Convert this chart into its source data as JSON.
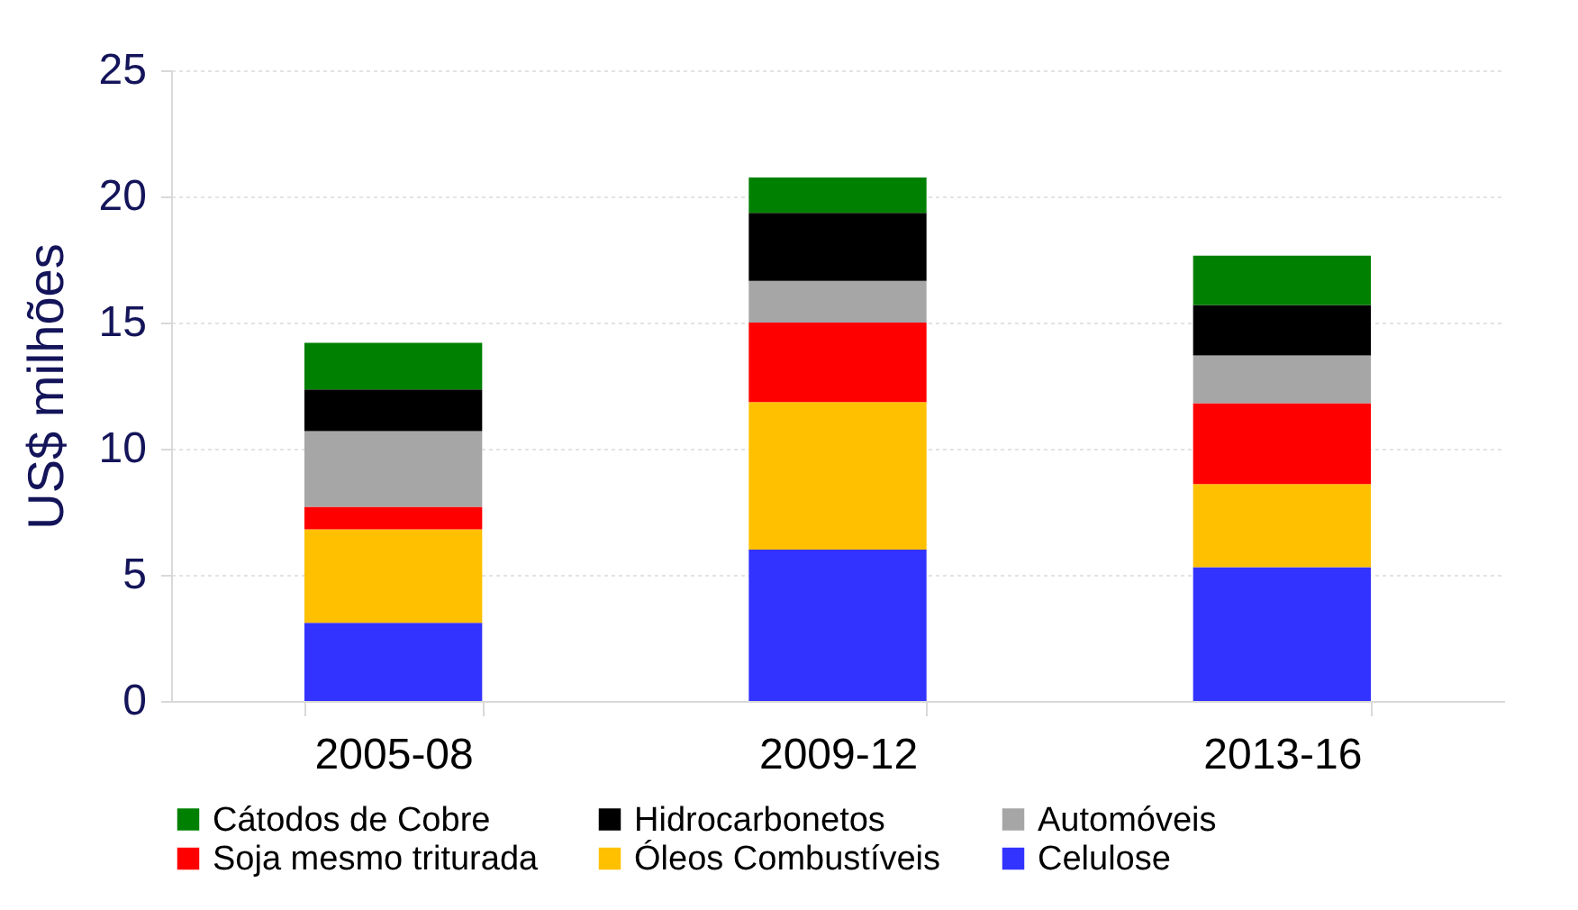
{
  "chart_data": {
    "type": "bar",
    "stacked": true,
    "ylabel": "US$ milhões",
    "categories": [
      "2005-08",
      "2009-12",
      "2013-16"
    ],
    "series": [
      {
        "name": "Celulose",
        "color": "#3333ff",
        "values": [
          3.1,
          6.0,
          5.3
        ]
      },
      {
        "name": "Óleos Combustíveis",
        "color": "#ffc000",
        "values": [
          3.7,
          5.85,
          3.3
        ]
      },
      {
        "name": "Soja mesmo triturada",
        "color": "#ff0000",
        "values": [
          0.9,
          3.15,
          3.2
        ]
      },
      {
        "name": "Automóveis",
        "color": "#a6a6a6",
        "values": [
          3.0,
          1.65,
          1.9
        ]
      },
      {
        "name": "Hidrocarbonetos",
        "color": "#000000",
        "values": [
          1.65,
          2.7,
          2.0
        ]
      },
      {
        "name": "Cátodos de Cobre",
        "color": "#008000",
        "values": [
          1.85,
          1.4,
          1.95
        ]
      }
    ],
    "ylim": [
      0,
      25
    ],
    "yticks": [
      0,
      5,
      10,
      15,
      20,
      25
    ],
    "grid": "y",
    "legend": "bottom"
  }
}
